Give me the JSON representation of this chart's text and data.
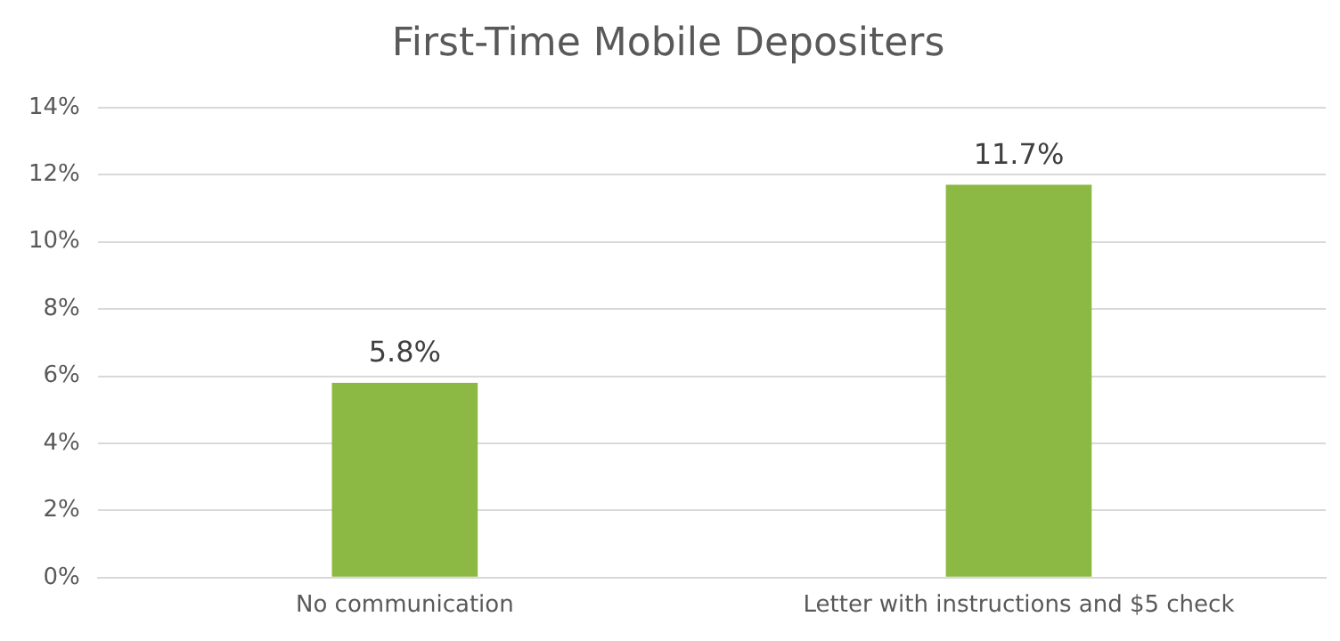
{
  "chart_data": {
    "type": "bar",
    "title": "First-Time Mobile Depositers",
    "categories": [
      "No communication",
      "Letter with instructions and $5 check"
    ],
    "values": [
      5.8,
      11.7
    ],
    "color": "#8cb943",
    "value_labels": [
      "5.8%",
      "11.7%"
    ],
    "ylim": [
      0,
      14
    ],
    "yticks": [
      {
        "value": 0,
        "label": "0%"
      },
      {
        "value": 2,
        "label": "2%"
      },
      {
        "value": 4,
        "label": "4%"
      },
      {
        "value": 6,
        "label": "6%"
      },
      {
        "value": 8,
        "label": "8%"
      },
      {
        "value": 10,
        "label": "10%"
      },
      {
        "value": 12,
        "label": "12%"
      },
      {
        "value": 14,
        "label": "14%"
      }
    ],
    "grid": "y",
    "legend": false
  }
}
